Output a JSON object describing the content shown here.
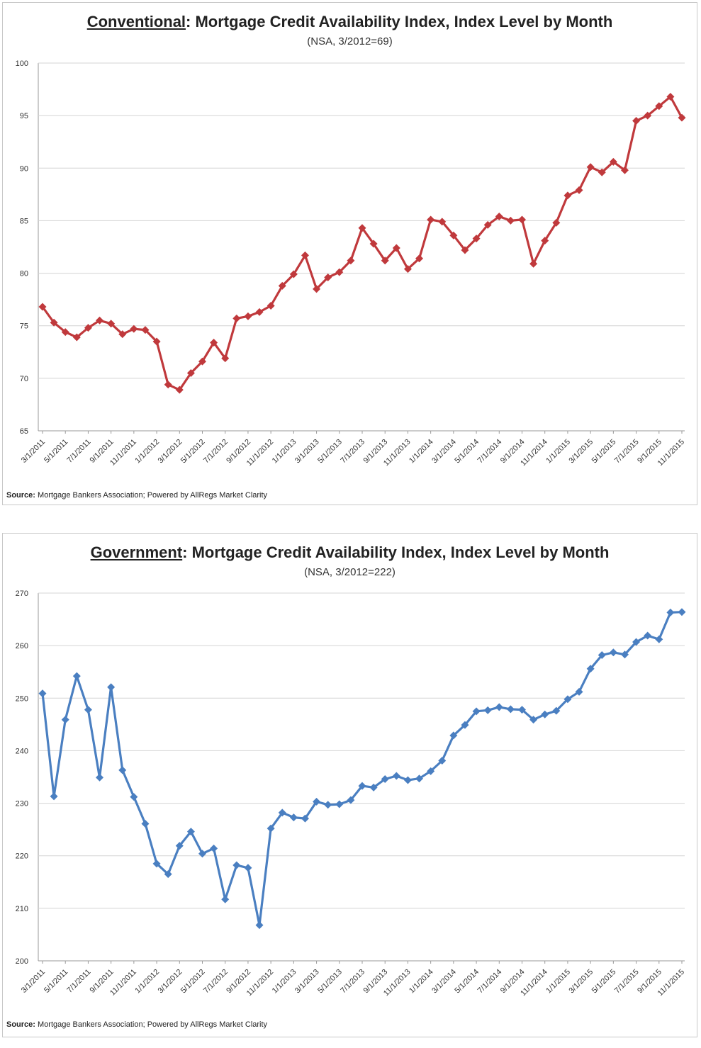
{
  "chart_data": [
    {
      "type": "line",
      "title_emphasis": "Conventional",
      "title_rest": ": Mortgage Credit Availability Index, Index Level by Month",
      "subtitle": "(NSA, 3/2012=69)",
      "source_label": "Source:",
      "source_text": " Mortgage Bankers Association; Powered by AllRegs Market Clarity",
      "xlabel": "",
      "ylabel": "",
      "ylim": [
        65,
        100
      ],
      "yticks": [
        65,
        70,
        75,
        80,
        85,
        90,
        95,
        100
      ],
      "grid": true,
      "color": "#c0393c",
      "x_tick_labels": [
        "3/1/2011",
        "5/1/2011",
        "7/1/2011",
        "9/1/2011",
        "11/1/2011",
        "1/1/2012",
        "3/1/2012",
        "5/1/2012",
        "7/1/2012",
        "9/1/2012",
        "11/1/2012",
        "1/1/2013",
        "3/1/2013",
        "5/1/2013",
        "7/1/2013",
        "9/1/2013",
        "11/1/2013",
        "1/1/2014",
        "3/1/2014",
        "5/1/2014",
        "7/1/2014",
        "9/1/2014",
        "11/1/2014",
        "1/1/2015",
        "3/1/2015",
        "5/1/2015",
        "7/1/2015",
        "9/1/2015",
        "11/1/2015"
      ],
      "values": [
        76.8,
        75.3,
        74.4,
        73.9,
        74.8,
        75.5,
        75.2,
        74.2,
        74.7,
        74.6,
        73.5,
        69.4,
        68.9,
        70.5,
        71.6,
        73.4,
        71.9,
        75.7,
        75.9,
        76.3,
        76.9,
        78.8,
        79.9,
        81.7,
        78.5,
        79.6,
        80.1,
        81.2,
        84.3,
        82.8,
        81.2,
        82.4,
        80.4,
        81.4,
        85.1,
        84.9,
        83.6,
        82.2,
        83.3,
        84.6,
        85.4,
        85.0,
        85.1,
        80.9,
        83.1,
        84.8,
        87.4,
        87.9,
        90.1,
        89.6,
        90.6,
        89.8,
        94.5,
        95.0,
        95.9,
        96.8,
        94.8
      ]
    },
    {
      "type": "line",
      "title_emphasis": "Government",
      "title_rest": ": Mortgage Credit Availability Index, Index Level by Month",
      "subtitle": "(NSA, 3/2012=222)",
      "source_label": "Source:",
      "source_text": " Mortgage Bankers Association; Powered by AllRegs Market Clarity",
      "xlabel": "",
      "ylabel": "",
      "ylim": [
        200,
        270
      ],
      "yticks": [
        200,
        210,
        220,
        230,
        240,
        250,
        260,
        270
      ],
      "grid": true,
      "color": "#4a7fc1",
      "x_tick_labels": [
        "3/1/2011",
        "5/1/2011",
        "7/1/2011",
        "9/1/2011",
        "11/1/2011",
        "1/1/2012",
        "3/1/2012",
        "5/1/2012",
        "7/1/2012",
        "9/1/2012",
        "11/1/2012",
        "1/1/2013",
        "3/1/2013",
        "5/1/2013",
        "7/1/2013",
        "9/1/2013",
        "11/1/2013",
        "1/1/2014",
        "3/1/2014",
        "5/1/2014",
        "7/1/2014",
        "9/1/2014",
        "11/1/2014",
        "1/1/2015",
        "3/1/2015",
        "5/1/2015",
        "7/1/2015",
        "9/1/2015",
        "11/1/2015"
      ],
      "values": [
        250.9,
        231.3,
        245.9,
        254.2,
        247.8,
        234.9,
        252.1,
        236.3,
        231.2,
        226.1,
        218.5,
        216.5,
        221.9,
        224.6,
        220.4,
        221.4,
        211.7,
        218.2,
        217.7,
        206.8,
        225.2,
        228.2,
        227.3,
        227.1,
        230.3,
        229.7,
        229.8,
        230.6,
        233.3,
        233.0,
        234.6,
        235.2,
        234.4,
        234.7,
        236.1,
        238.1,
        242.9,
        244.9,
        247.5,
        247.7,
        248.3,
        247.9,
        247.8,
        245.9,
        246.9,
        247.6,
        249.8,
        251.2,
        255.6,
        258.2,
        258.7,
        258.3,
        260.7,
        261.9,
        261.2,
        266.3,
        266.4
      ]
    }
  ]
}
